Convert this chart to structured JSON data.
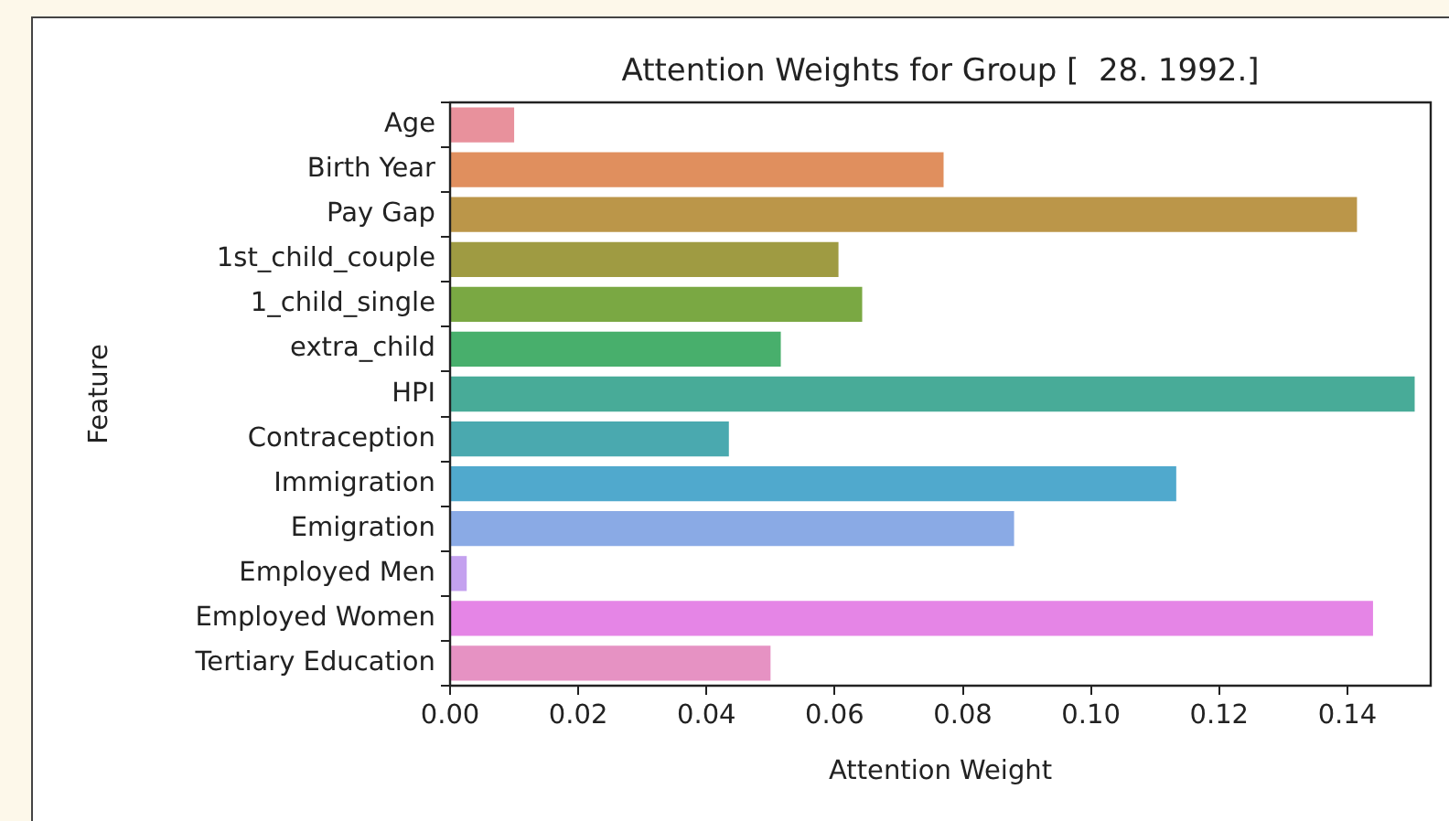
{
  "chart_data": {
    "type": "bar",
    "orientation": "horizontal",
    "title": "Attention Weights for Group [  28. 1992.]",
    "xlabel": "Attention Weight",
    "ylabel": "Feature",
    "categories": [
      "Age",
      "Birth Year",
      "Pay Gap",
      "1st_child_couple",
      "1_child_single",
      "extra_child",
      "HPI",
      "Contraception",
      "Immigration",
      "Emigration",
      "Employed Men",
      "Employed Women",
      "Tertiary Education"
    ],
    "values": [
      0.01,
      0.077,
      0.1415,
      0.0606,
      0.0643,
      0.0516,
      0.1505,
      0.0435,
      0.1133,
      0.088,
      0.0026,
      0.144,
      0.05
    ],
    "colors": [
      "#e8919c",
      "#e08f5e",
      "#bb9649",
      "#9f9b42",
      "#7aa843",
      "#48af6c",
      "#48ab98",
      "#4aa9af",
      "#50a9cd",
      "#8aaae5",
      "#c4a1ef",
      "#e585e6",
      "#e692c3"
    ],
    "xlim": [
      0,
      0.153
    ],
    "xticks": [
      {
        "value": 0,
        "label": "0.00"
      },
      {
        "value": 0.02,
        "label": "0.02"
      },
      {
        "value": 0.04,
        "label": "0.04"
      },
      {
        "value": 0.06,
        "label": "0.06"
      },
      {
        "value": 0.08,
        "label": "0.08"
      },
      {
        "value": 0.1,
        "label": "0.10"
      },
      {
        "value": 0.12,
        "label": "0.12"
      },
      {
        "value": 0.14,
        "label": "0.14"
      }
    ]
  }
}
